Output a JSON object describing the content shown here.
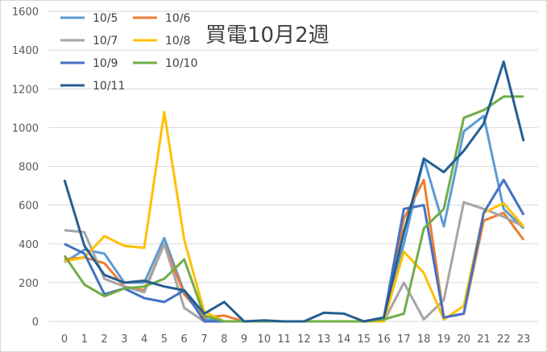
{
  "chart_data": {
    "type": "line",
    "title": "買電10月2週",
    "xlabel": "",
    "ylabel": "",
    "categories": [
      0,
      1,
      2,
      3,
      4,
      5,
      6,
      7,
      8,
      9,
      10,
      11,
      12,
      13,
      14,
      15,
      16,
      17,
      18,
      19,
      20,
      21,
      22,
      23
    ],
    "ylim": [
      0,
      1600
    ],
    "yticks": [
      0,
      200,
      400,
      600,
      800,
      1000,
      1200,
      1400,
      1600
    ],
    "grid": true,
    "legend": "top-left",
    "series": [
      {
        "name": "10/5",
        "color": "#5B9BD5",
        "values": [
          305,
          370,
          350,
          200,
          200,
          430,
          150,
          10,
          0,
          0,
          0,
          0,
          0,
          0,
          0,
          0,
          10,
          400,
          840,
          490,
          980,
          1060,
          580,
          480
        ]
      },
      {
        "name": "10/6",
        "color": "#ED7D31",
        "values": [
          320,
          330,
          300,
          180,
          160,
          400,
          140,
          20,
          30,
          0,
          0,
          0,
          0,
          0,
          0,
          0,
          0,
          530,
          730,
          20,
          40,
          520,
          560,
          420
        ]
      },
      {
        "name": "10/7",
        "color": "#A5A5A5",
        "values": [
          470,
          460,
          220,
          180,
          150,
          400,
          70,
          0,
          0,
          0,
          0,
          0,
          0,
          0,
          0,
          0,
          0,
          200,
          10,
          110,
          615,
          580,
          540,
          490
        ]
      },
      {
        "name": "10/8",
        "color": "#FFC000",
        "values": [
          310,
          330,
          440,
          390,
          380,
          1080,
          420,
          50,
          0,
          0,
          0,
          0,
          0,
          0,
          0,
          0,
          0,
          360,
          250,
          10,
          80,
          560,
          610,
          490
        ]
      },
      {
        "name": "10/9",
        "color": "#4472C4",
        "values": [
          400,
          350,
          140,
          170,
          120,
          100,
          160,
          0,
          0,
          0,
          0,
          0,
          0,
          0,
          0,
          0,
          20,
          580,
          600,
          20,
          40,
          560,
          730,
          550
        ]
      },
      {
        "name": "10/10",
        "color": "#70AD47",
        "values": [
          340,
          190,
          130,
          170,
          180,
          220,
          320,
          30,
          0,
          0,
          0,
          0,
          0,
          0,
          0,
          0,
          10,
          40,
          480,
          580,
          1050,
          1090,
          1160,
          1160
        ]
      },
      {
        "name": "10/11",
        "color": "#255E91",
        "values": [
          730,
          390,
          240,
          200,
          210,
          180,
          160,
          40,
          100,
          0,
          5,
          0,
          0,
          45,
          40,
          0,
          20,
          460,
          840,
          770,
          880,
          1020,
          1340,
          930
        ]
      }
    ]
  }
}
